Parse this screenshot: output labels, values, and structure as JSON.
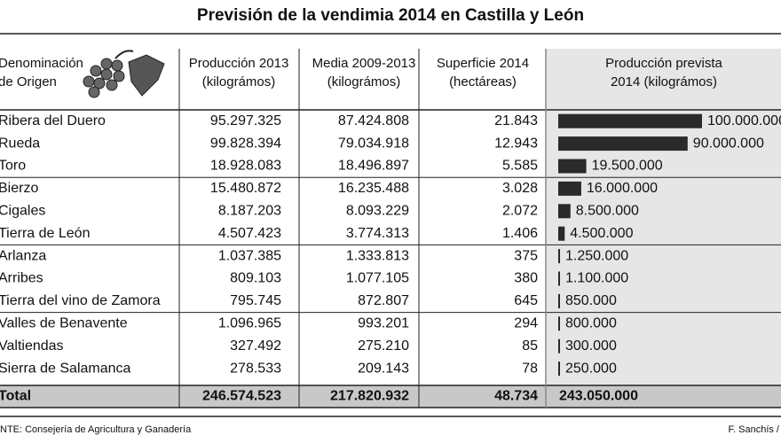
{
  "title": "Previsión de la vendimia 2014 en Castilla y León",
  "table": {
    "header": [
      [
        "Denominación",
        "de Origen"
      ],
      [
        "Producción 2013",
        "(kilográmos)"
      ],
      [
        "Media 2009-2013",
        "(kilográmos)"
      ],
      [
        "Superficie 2014",
        "(hectáreas)"
      ],
      [
        "Producción prevista",
        "2014 (kilográmos)"
      ]
    ],
    "rows": [
      [
        "Ribera del Duero",
        "95.297.325",
        "87.424.808",
        "21.843",
        "100.000.000"
      ],
      [
        "Rueda",
        "99.828.394",
        "79.034.918",
        "12.943",
        "90.000.000"
      ],
      [
        "Toro",
        "18.928.083",
        "18.496.897",
        "5.585",
        "19.500.000"
      ],
      [
        "Bierzo",
        "15.480.872",
        "16.235.488",
        "3.028",
        "16.000.000"
      ],
      [
        "Cigales",
        "8.187.203",
        "8.093.229",
        "2.072",
        "8.500.000"
      ],
      [
        "Tierra de León",
        "4.507.423",
        "3.774.313",
        "1.406",
        "4.500.000"
      ],
      [
        "Arlanza",
        "1.037.385",
        "1.333.813",
        "375",
        "1.250.000"
      ],
      [
        "Arribes",
        "809.103",
        "1.077.105",
        "380",
        "1.100.000"
      ],
      [
        "Tierra del vino de Zamora",
        "795.745",
        "872.807",
        "645",
        "850.000"
      ],
      [
        "Valles de Benavente",
        "1.096.965",
        "993.201",
        "294",
        "800.000"
      ],
      [
        "Valtiendas",
        "327.492",
        "275.210",
        "85",
        "300.000"
      ],
      [
        "Sierra de Salamanca",
        "278.533",
        "209.143",
        "78",
        "250.000"
      ]
    ],
    "total": [
      "Total",
      "246.574.523",
      "217.820.932",
      "48.734",
      "243.050.000"
    ]
  },
  "footer": {
    "source": "NTE: Consejería de Agricultura y Ganadería",
    "credit": "F. Sanchís /"
  }
}
